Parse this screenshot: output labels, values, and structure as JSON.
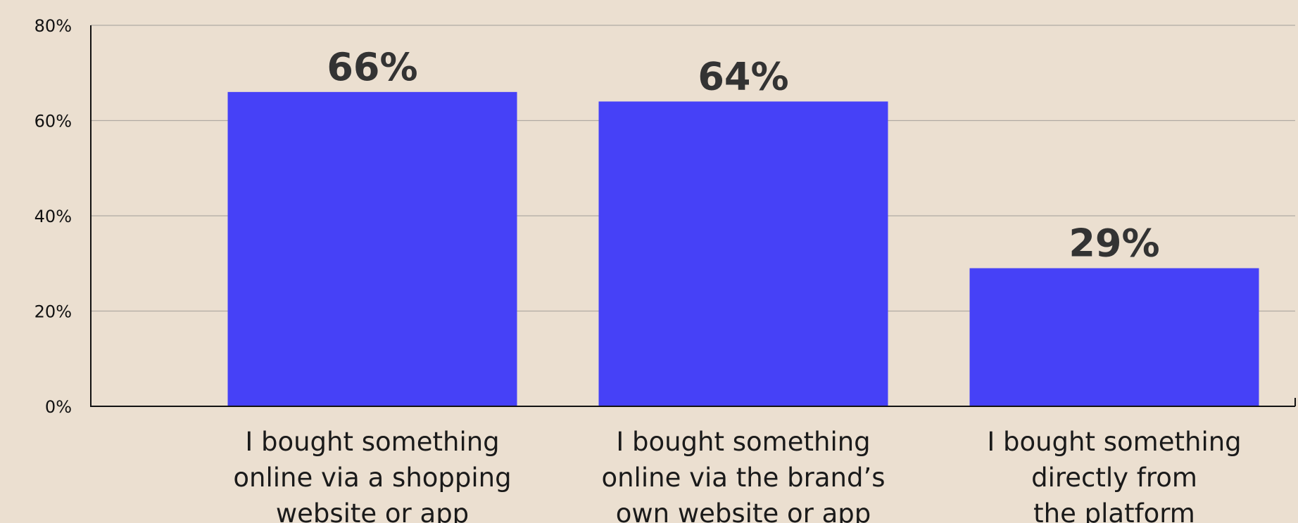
{
  "chart_data": {
    "type": "bar",
    "categories": [
      [
        "I bought something",
        "online via a shopping",
        "website or app"
      ],
      [
        "I bought something",
        "online via the brand’s",
        "own website or app"
      ],
      [
        "I bought something",
        "directly from",
        "the platform"
      ]
    ],
    "values": [
      66,
      64,
      29
    ],
    "data_labels": [
      "66%",
      "64%",
      "29%"
    ],
    "y_ticks": [
      {
        "value": 0,
        "label": "0%"
      },
      {
        "value": 20,
        "label": "20%"
      },
      {
        "value": 40,
        "label": "40%"
      },
      {
        "value": 60,
        "label": "60%"
      },
      {
        "value": 80,
        "label": "80%"
      }
    ],
    "ylim": [
      0,
      80
    ],
    "grid": true,
    "legend": "none",
    "colors": {
      "bar": "#4641f7",
      "background": "#ebdfd0",
      "grid": "#b0aaa2",
      "axis": "#111111",
      "data_label": "#333333"
    }
  }
}
